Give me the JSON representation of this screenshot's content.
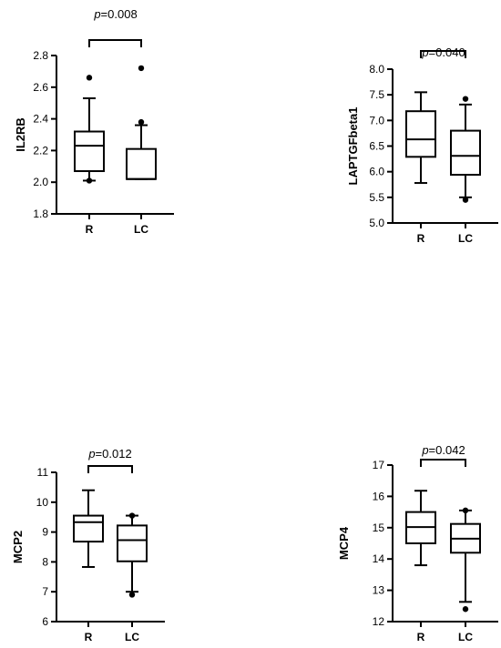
{
  "chart_data": [
    {
      "type": "box",
      "ylabel": "IL2RB",
      "ylim": [
        1.8,
        2.8
      ],
      "yticks": [
        "1.8",
        "2.0",
        "2.2",
        "2.4",
        "2.6",
        "2.8"
      ],
      "categories": [
        "R",
        "LC"
      ],
      "boxes": [
        {
          "whisker_low": 2.01,
          "q1": 2.07,
          "median": 2.23,
          "q3": 2.32,
          "whisker_high": 2.53,
          "outliers": [
            2.01,
            2.66
          ]
        },
        {
          "whisker_low": 2.02,
          "q1": 2.02,
          "median": 2.02,
          "q3": 2.21,
          "whisker_high": 2.36,
          "outliers": [
            2.38,
            2.72
          ]
        }
      ],
      "pvalue": {
        "prefix": "p",
        "value": "=0.008"
      }
    },
    {
      "type": "box",
      "ylabel": "LAPTGFbeta1",
      "ylim": [
        5.0,
        8.0
      ],
      "yticks": [
        "5.0",
        "5.5",
        "6.0",
        "6.5",
        "7.0",
        "7.5",
        "8.0"
      ],
      "categories": [
        "R",
        "LC"
      ],
      "boxes": [
        {
          "whisker_low": 5.78,
          "q1": 6.29,
          "median": 6.63,
          "q3": 7.18,
          "whisker_high": 7.55,
          "outliers": []
        },
        {
          "whisker_low": 5.5,
          "q1": 5.94,
          "median": 6.31,
          "q3": 6.8,
          "whisker_high": 7.31,
          "outliers": [
            5.45,
            7.42
          ]
        }
      ],
      "pvalue": {
        "prefix": "p",
        "value": "=0.040"
      }
    },
    {
      "type": "box",
      "ylabel": "MCP2",
      "ylim": [
        6,
        11
      ],
      "yticks": [
        "6",
        "7",
        "8",
        "9",
        "10",
        "11"
      ],
      "categories": [
        "R",
        "LC"
      ],
      "boxes": [
        {
          "whisker_low": 7.83,
          "q1": 8.68,
          "median": 9.33,
          "q3": 9.55,
          "whisker_high": 10.4,
          "outliers": []
        },
        {
          "whisker_low": 7.0,
          "q1": 8.02,
          "median": 8.73,
          "q3": 9.22,
          "whisker_high": 9.55,
          "outliers": [
            6.9,
            9.55
          ]
        }
      ],
      "pvalue": {
        "prefix": "p",
        "value": "=0.012"
      }
    },
    {
      "type": "box",
      "ylabel": "MCP4",
      "ylim": [
        12,
        17
      ],
      "yticks": [
        "12",
        "13",
        "14",
        "15",
        "16",
        "17"
      ],
      "categories": [
        "R",
        "LC"
      ],
      "boxes": [
        {
          "whisker_low": 13.8,
          "q1": 14.5,
          "median": 15.02,
          "q3": 15.5,
          "whisker_high": 16.18,
          "outliers": []
        },
        {
          "whisker_low": 12.63,
          "q1": 14.2,
          "median": 14.65,
          "q3": 15.12,
          "whisker_high": 15.55,
          "outliers": [
            12.4,
            15.55
          ]
        }
      ],
      "pvalue": {
        "prefix": "p",
        "value": "=0.042"
      }
    }
  ]
}
